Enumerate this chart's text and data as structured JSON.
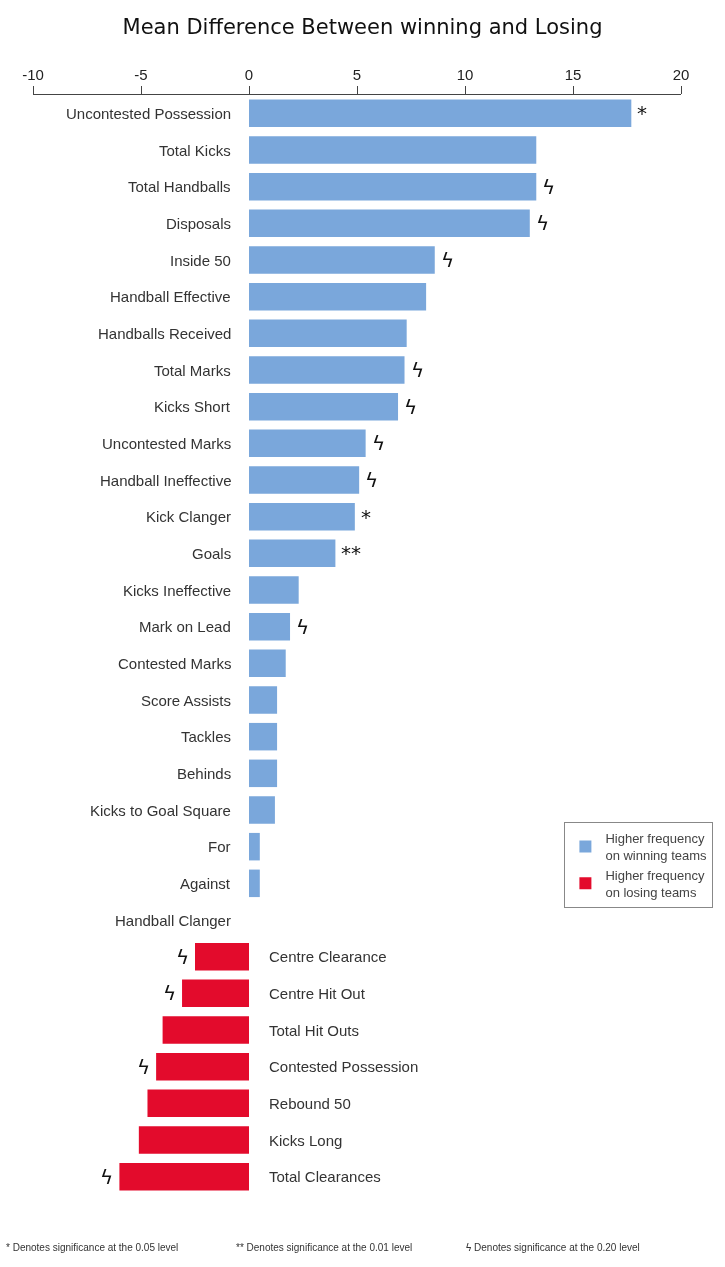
{
  "chart_data": {
    "type": "bar",
    "orientation": "horizontal",
    "title": "Mean Difference Between winning and Losing",
    "categories": [
      "Uncontested Possession",
      "Total Kicks",
      "Total Handballs",
      "Disposals",
      "Inside 50",
      "Handball Effective",
      "Handballs Received",
      "Total Marks",
      "Kicks Short",
      "Uncontested Marks",
      "Handball Ineffective",
      "Kick Clanger",
      "Goals",
      "Kicks Ineffective",
      "Mark on Lead",
      "Contested Marks",
      "Score Assists",
      "Tackles",
      "Behinds",
      "Kicks to Goal Square",
      "For",
      "Against",
      "Handball Clanger",
      "Centre Clearance",
      "Centre Hit Out",
      "Total Hit Outs",
      "Contested Possession",
      "Rebound 50",
      "Kicks Long",
      "Total Clearances"
    ],
    "series": [
      {
        "name": "Higher frequency on winning teams",
        "color": "#7aa7db",
        "values": [
          17.7,
          13.3,
          13.3,
          13.0,
          8.6,
          8.2,
          7.3,
          7.2,
          6.9,
          5.4,
          5.1,
          4.9,
          4.0,
          2.3,
          1.9,
          1.7,
          1.3,
          1.3,
          1.3,
          1.2,
          0.5,
          0.5,
          0,
          null,
          null,
          null,
          null,
          null,
          null,
          null
        ]
      },
      {
        "name": "Higher frequency on losing teams",
        "color": "#e30b2c",
        "values": [
          null,
          null,
          null,
          null,
          null,
          null,
          null,
          null,
          null,
          null,
          null,
          null,
          null,
          null,
          null,
          null,
          null,
          null,
          null,
          null,
          null,
          null,
          null,
          -2.5,
          -3.1,
          -4.0,
          -4.3,
          -4.7,
          -5.1,
          -6.0
        ]
      }
    ],
    "xlim": [
      -10,
      20
    ],
    "xticks": [
      -10,
      -5,
      0,
      5,
      10,
      15,
      20
    ],
    "tick_labels": "x",
    "legend": "right",
    "annotations": [
      {
        "text": "*",
        "x": 17.7,
        "y": "Uncontested Possession"
      },
      {
        "text": "ϟ",
        "x": 13.3,
        "y": "Total Handballs"
      },
      {
        "text": "ϟ",
        "x": 13.0,
        "y": "Disposals"
      },
      {
        "text": "ϟ",
        "x": 8.6,
        "y": "Inside 50"
      },
      {
        "text": "ϟ",
        "x": 7.2,
        "y": "Total Marks"
      },
      {
        "text": "ϟ",
        "x": 6.9,
        "y": "Kicks Short"
      },
      {
        "text": "ϟ",
        "x": 5.4,
        "y": "Uncontested Marks"
      },
      {
        "text": "ϟ",
        "x": 5.1,
        "y": "Handball Ineffective"
      },
      {
        "text": "*",
        "x": 4.9,
        "y": "Kick Clanger"
      },
      {
        "text": "**",
        "x": 4.0,
        "y": "Goals"
      },
      {
        "text": "ϟ",
        "x": 1.9,
        "y": "Mark on Lead"
      },
      {
        "text": "ϟ",
        "x": -2.5,
        "y": "Centre Clearance"
      },
      {
        "text": "ϟ",
        "x": -3.1,
        "y": "Centre Hit Out"
      },
      {
        "text": "ϟ",
        "x": -4.3,
        "y": "Contested Possession"
      },
      {
        "text": "ϟ",
        "x": -6.0,
        "y": "Total Clearances"
      },
      "* Denotes significance at the 0.05 level",
      "** Denotes significance at the 0.01 level",
      "ϟ Denotes significance at the 0.20 level"
    ]
  }
}
